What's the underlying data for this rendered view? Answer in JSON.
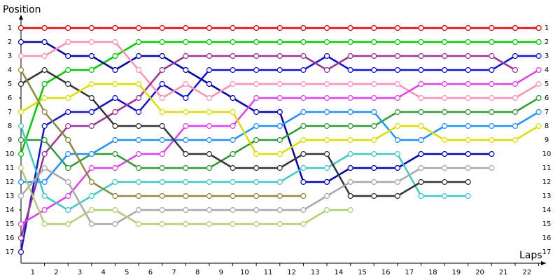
{
  "chart_data": {
    "type": "lap",
    "y_label": "Position",
    "x_label": "Laps",
    "x": [
      0,
      1,
      2,
      3,
      4,
      5,
      6,
      7,
      8,
      9,
      10,
      11,
      12,
      13,
      14,
      15,
      16,
      17,
      18,
      19,
      20,
      21,
      22
    ],
    "xlim": [
      0,
      22.25
    ],
    "ylim": [
      17.75,
      0.25
    ],
    "xticks": [
      1,
      2,
      3,
      4,
      5,
      6,
      7,
      8,
      9,
      10,
      11,
      12,
      13,
      14,
      15,
      16,
      17,
      18,
      19,
      20,
      21,
      22
    ],
    "yticks": [
      1,
      2,
      3,
      4,
      5,
      6,
      7,
      8,
      9,
      10,
      11,
      12,
      13,
      14,
      15,
      16,
      17
    ],
    "series": [
      {
        "name": "red",
        "color": "#e00000",
        "values": [
          1,
          1,
          1,
          1,
          1,
          1,
          1,
          1,
          1,
          1,
          1,
          1,
          1,
          1,
          1,
          1,
          1,
          1,
          1,
          1,
          1,
          1,
          1
        ]
      },
      {
        "name": "green",
        "color": "#00cc00",
        "values": [
          10,
          5,
          4,
          4,
          3,
          2,
          2,
          2,
          2,
          2,
          2,
          2,
          2,
          2,
          2,
          2,
          2,
          2,
          2,
          2,
          2,
          2,
          2
        ]
      },
      {
        "name": "blue",
        "color": "#1010d8",
        "values": [
          17,
          8,
          7,
          7,
          6,
          7,
          5,
          6,
          4,
          4,
          4,
          4,
          4,
          3,
          4,
          4,
          4,
          4,
          4,
          4,
          4,
          3,
          3
        ]
      },
      {
        "name": "navy",
        "color": "#0000b0",
        "values": [
          2,
          2,
          3,
          3,
          4,
          3,
          3,
          4,
          5,
          6,
          7,
          7,
          12,
          12,
          11,
          11,
          11,
          10,
          10,
          10,
          10,
          null,
          null
        ]
      },
      {
        "name": "pink",
        "color": "#ff8fb0",
        "values": [
          3,
          3,
          2,
          2,
          2,
          4,
          6,
          5,
          6,
          5,
          5,
          5,
          5,
          5,
          5,
          5,
          5,
          6,
          6,
          6,
          6,
          6,
          5
        ]
      },
      {
        "name": "purple",
        "color": "#993399",
        "values": [
          16,
          10,
          8,
          8,
          7,
          6,
          4,
          3,
          3,
          3,
          3,
          3,
          3,
          4,
          3,
          3,
          3,
          3,
          3,
          3,
          3,
          4,
          null
        ]
      },
      {
        "name": "magenta",
        "color": "#e040f0",
        "values": [
          15,
          14,
          13,
          11,
          11,
          10,
          10,
          8,
          8,
          8,
          6,
          6,
          6,
          6,
          6,
          6,
          6,
          5,
          5,
          5,
          5,
          5,
          4
        ]
      },
      {
        "name": "dark-green",
        "color": "#2e9c2e",
        "values": [
          9,
          9,
          11,
          10,
          10,
          11,
          11,
          11,
          11,
          10,
          9,
          9,
          8,
          8,
          8,
          8,
          7,
          7,
          7,
          7,
          7,
          7,
          6
        ]
      },
      {
        "name": "azure",
        "color": "#1e90ff",
        "values": [
          12,
          12,
          10,
          10,
          9,
          9,
          9,
          9,
          9,
          9,
          8,
          8,
          7,
          7,
          7,
          7,
          9,
          9,
          8,
          8,
          8,
          8,
          7
        ]
      },
      {
        "name": "cyan",
        "color": "#40c8c8",
        "values": [
          8,
          13,
          14,
          13,
          12,
          12,
          12,
          12,
          12,
          12,
          12,
          12,
          11,
          11,
          10,
          10,
          10,
          13,
          13,
          13,
          null,
          null,
          null
        ]
      },
      {
        "name": "black",
        "color": "#333333",
        "values": [
          5,
          4,
          5,
          6,
          8,
          8,
          8,
          10,
          10,
          11,
          11,
          11,
          10,
          10,
          13,
          13,
          13,
          12,
          12,
          12,
          null,
          null,
          null
        ]
      },
      {
        "name": "yellow",
        "color": "#dddd00",
        "values": [
          7,
          6,
          6,
          5,
          5,
          5,
          7,
          7,
          7,
          7,
          10,
          10,
          9,
          9,
          9,
          9,
          8,
          8,
          9,
          9,
          9,
          9,
          8
        ]
      },
      {
        "name": "olive",
        "color": "#8b8b3a",
        "values": [
          4,
          7,
          9,
          12,
          13,
          13,
          13,
          13,
          13,
          13,
          13,
          13,
          13,
          null,
          null,
          null,
          null,
          null,
          null,
          null,
          null,
          null,
          null
        ]
      },
      {
        "name": "gray",
        "color": "#a8a8a8",
        "values": [
          13,
          11,
          12,
          15,
          15,
          14,
          14,
          14,
          14,
          14,
          14,
          14,
          14,
          13,
          12,
          12,
          12,
          11,
          11,
          11,
          11,
          null,
          null
        ]
      },
      {
        "name": "light-green",
        "color": "#b0d070",
        "values": [
          11,
          15,
          15,
          14,
          14,
          15,
          15,
          15,
          15,
          15,
          15,
          15,
          15,
          14,
          14,
          null,
          null,
          null,
          null,
          null,
          null,
          null,
          null
        ]
      }
    ]
  }
}
